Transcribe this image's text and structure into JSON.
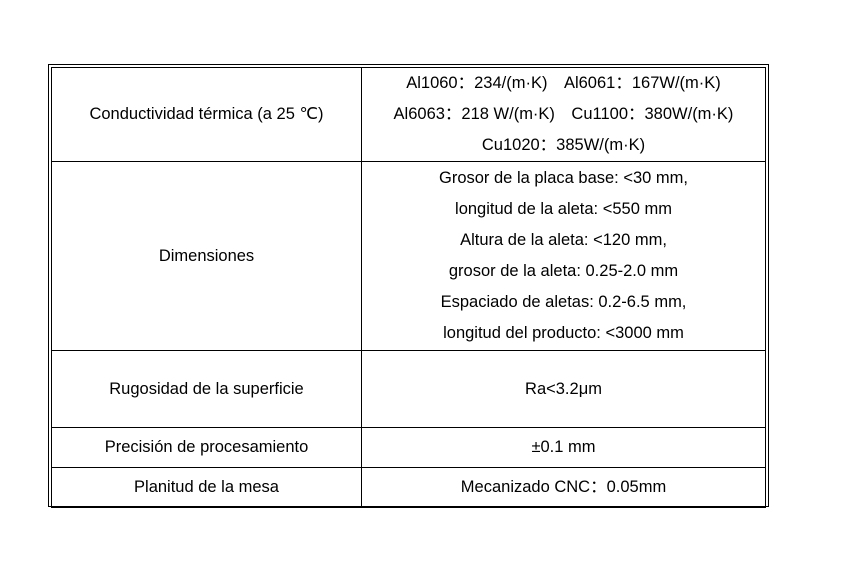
{
  "rows": [
    {
      "label": "Conductividad térmica (a 25 ℃)",
      "lines": [
        "Al1060：234/(m·K)　Al6061：167W/(m·K)",
        "Al6063：218 W/(m·K)　Cu1100：380W/(m·K)",
        "Cu1020：385W/(m·K)"
      ]
    },
    {
      "label": "Dimensiones",
      "lines": [
        "Grosor de la placa base: <30 mm,",
        "longitud de la aleta: <550 mm",
        "Altura de la aleta: <120 mm,",
        "grosor de la aleta: 0.25-2.0 mm",
        "Espaciado de aletas: 0.2-6.5 mm,",
        "longitud del producto: <3000 mm"
      ]
    },
    {
      "label": "Rugosidad de la superficie",
      "lines": [
        "Ra<3.2μm"
      ]
    },
    {
      "label": "Precisión de procesamiento",
      "lines": [
        "±0.1 mm"
      ]
    },
    {
      "label": "Planitud de la mesa",
      "lines": [
        "Mecanizado CNC：0.05mm"
      ]
    }
  ]
}
